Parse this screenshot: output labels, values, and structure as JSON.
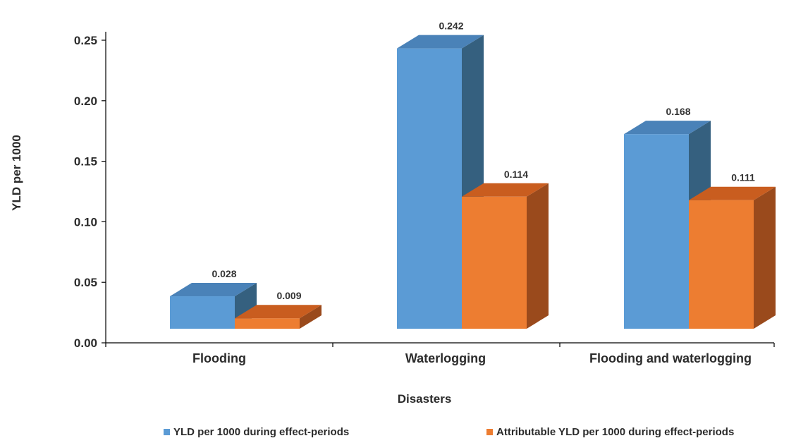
{
  "chart_data": {
    "type": "bar",
    "style": "3d-clustered-column",
    "categories": [
      "Flooding",
      "Waterlogging",
      "Flooding and waterlogging"
    ],
    "series": [
      {
        "name": "YLD per 1000 during effect-periods",
        "values": [
          0.028,
          0.242,
          0.168
        ],
        "color": "#5b9bd5",
        "top_color": "#4a82b8",
        "side_color": "#35607f"
      },
      {
        "name": "Attributable YLD per 1000 during effect-periods",
        "values": [
          0.009,
          0.114,
          0.111
        ],
        "color": "#ed7d31",
        "top_color": "#c95d1f",
        "side_color": "#9a4a1c"
      }
    ],
    "data_labels": [
      [
        "0.028",
        "0.242",
        "0.168"
      ],
      [
        "0.009",
        "0.114",
        "0.111"
      ]
    ],
    "xlabel": "Disasters",
    "ylabel": "YLD per 1000",
    "ylim": [
      0,
      0.25
    ],
    "yticks": [
      "0.00",
      "0.05",
      "0.10",
      "0.15",
      "0.20",
      "0.25"
    ],
    "grid": false,
    "legend_position": "bottom"
  }
}
